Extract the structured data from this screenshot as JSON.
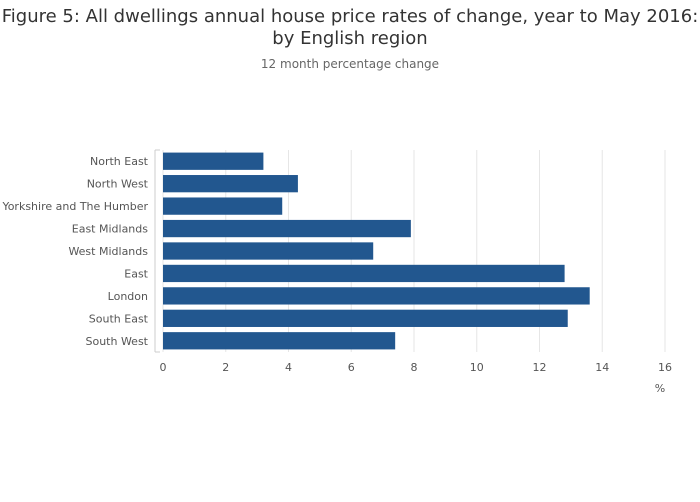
{
  "chart_data": {
    "type": "bar",
    "orientation": "horizontal",
    "title": "Figure 5: All dwellings annual house price rates of change, year to May 2016: by English region",
    "subtitle": "12 month percentage change",
    "categories": [
      "North East",
      "North West",
      "Yorkshire and The Humber",
      "East Midlands",
      "West Midlands",
      "East",
      "London",
      "South East",
      "South West"
    ],
    "values": [
      3.2,
      4.3,
      3.8,
      7.9,
      6.7,
      12.8,
      13.6,
      12.9,
      7.4
    ],
    "xlabel": "%",
    "ylabel": "",
    "xlim": [
      0,
      16
    ],
    "xticks": [
      0,
      2,
      4,
      6,
      8,
      10,
      12,
      14,
      16
    ],
    "grid": true,
    "legend": "none",
    "bar_color": "#22578f"
  }
}
